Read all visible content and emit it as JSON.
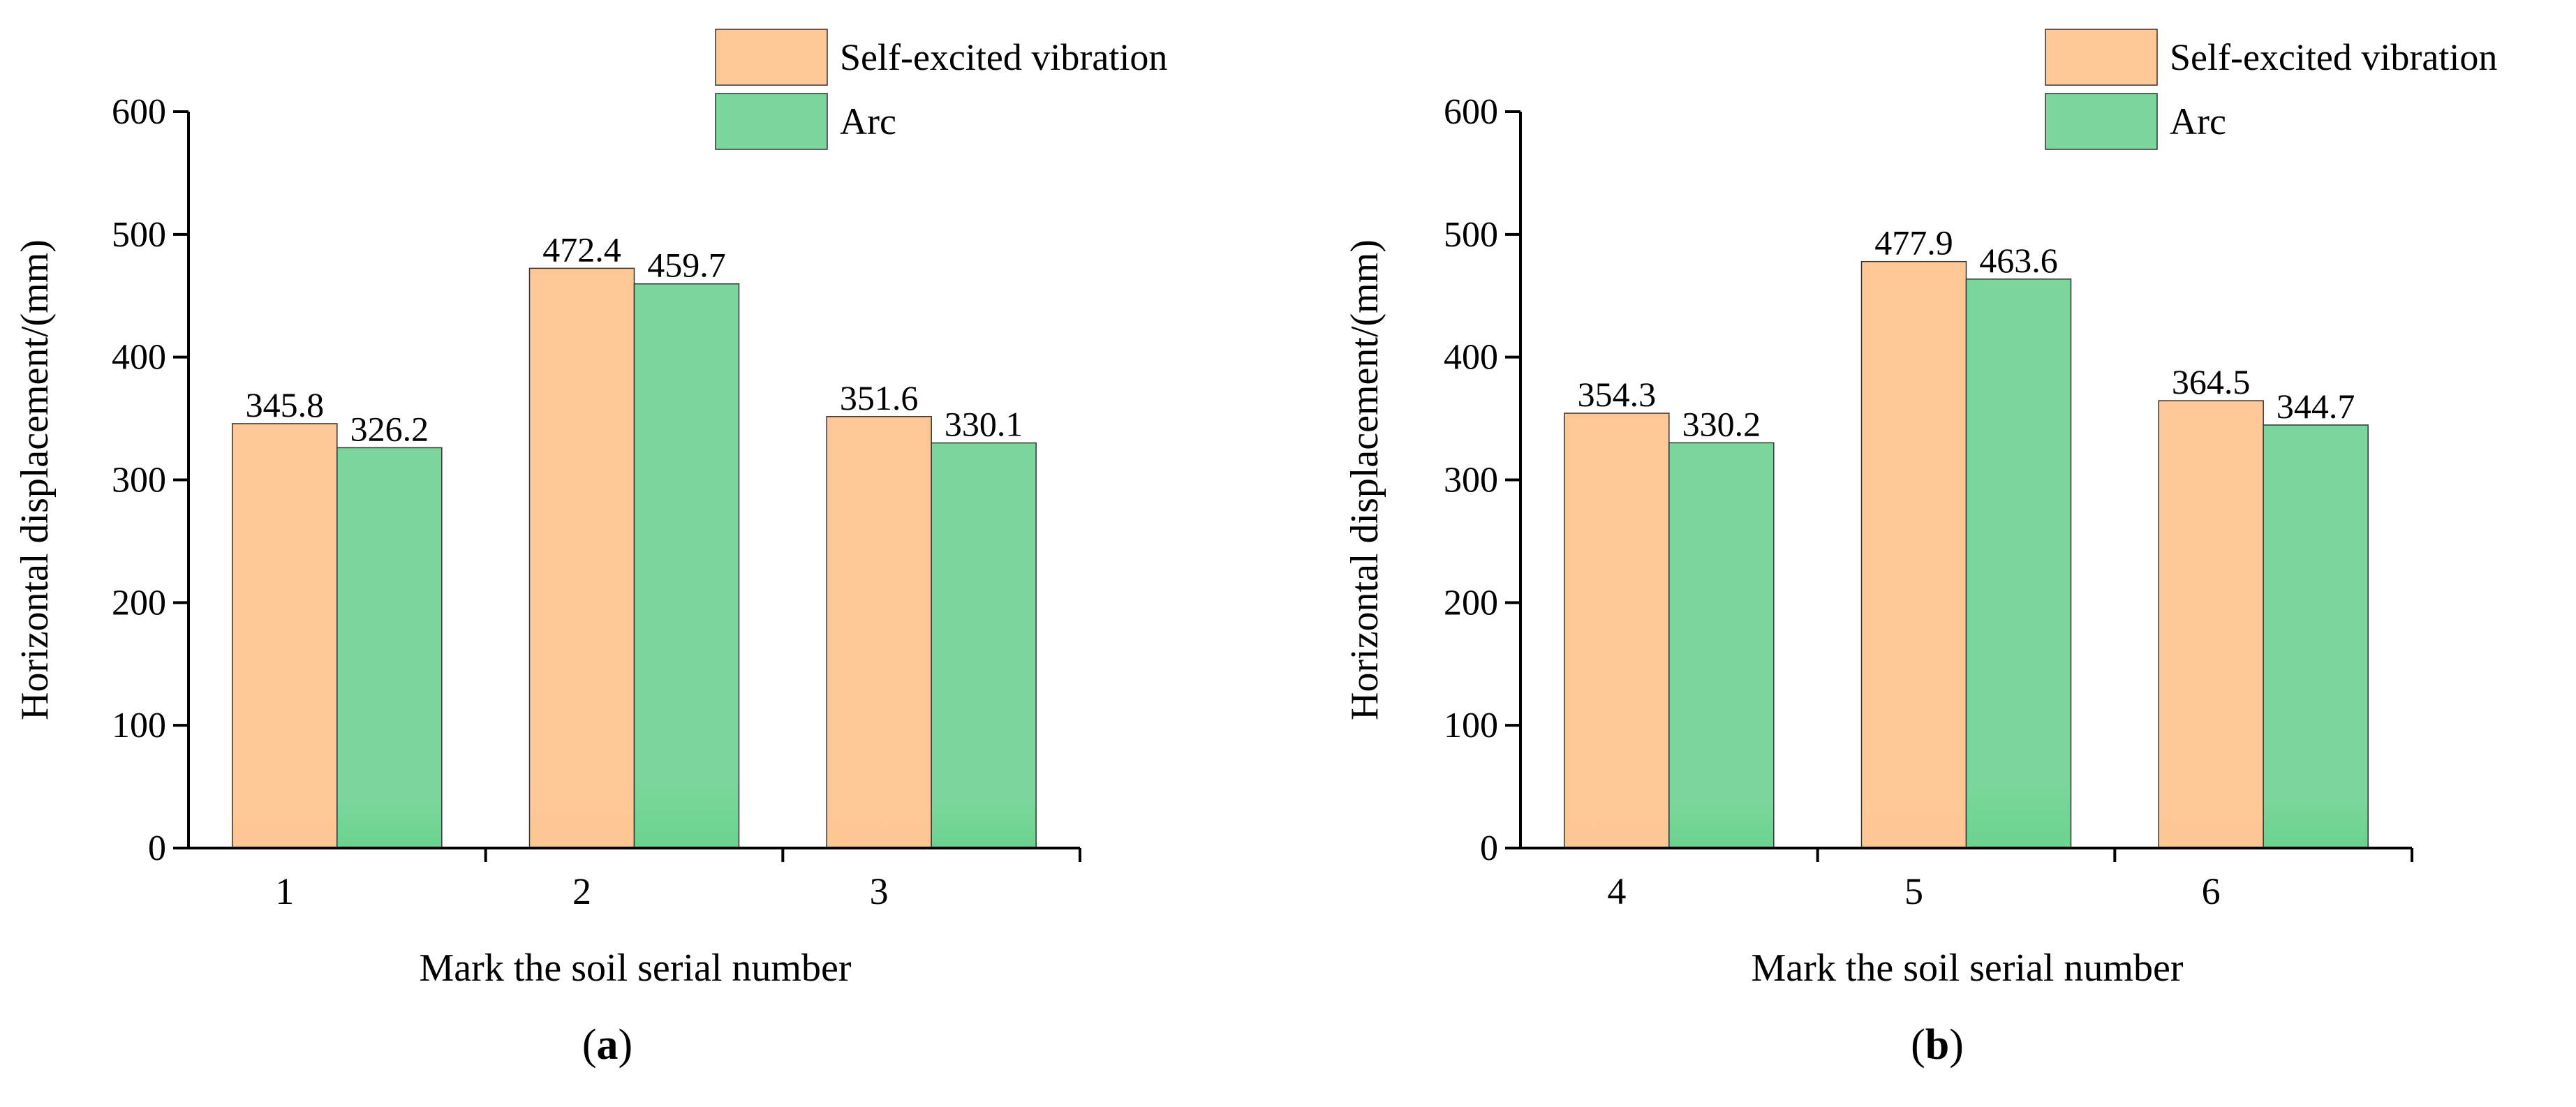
{
  "chart_data": [
    {
      "type": "bar",
      "panel_label": "a",
      "categories": [
        "1",
        "2",
        "3"
      ],
      "series": [
        {
          "name": "Self-excited vibration",
          "values": [
            345.8,
            472.4,
            351.6
          ]
        },
        {
          "name": "Arc",
          "values": [
            326.2,
            459.7,
            330.1
          ]
        }
      ],
      "value_labels": [
        [
          "345.8",
          "472.4",
          "351.6"
        ],
        [
          "326.2",
          "459.7",
          "330.1"
        ]
      ],
      "title": "",
      "xlabel": "Mark the soil serial number",
      "ylabel": "Horizontal displacement/(mm)",
      "ylim": [
        0,
        600
      ],
      "yticks": [
        0,
        100,
        200,
        300,
        400,
        500,
        600
      ],
      "ytick_labels": [
        "0",
        "100",
        "200",
        "300",
        "400",
        "500",
        "600"
      ],
      "grid": false,
      "legend": "top-right"
    },
    {
      "type": "bar",
      "panel_label": "b",
      "categories": [
        "4",
        "5",
        "6"
      ],
      "series": [
        {
          "name": "Self-excited vibration",
          "values": [
            354.3,
            477.9,
            364.5
          ]
        },
        {
          "name": "Arc",
          "values": [
            330.2,
            463.6,
            344.7
          ]
        }
      ],
      "value_labels": [
        [
          "354.3",
          "477.9",
          "364.5"
        ],
        [
          "330.2",
          "463.6",
          "344.7"
        ]
      ],
      "title": "",
      "xlabel": "Mark the soil serial number",
      "ylabel": "Horizontal displacement/(mm)",
      "ylim": [
        0,
        600
      ],
      "yticks": [
        0,
        100,
        200,
        300,
        400,
        500,
        600
      ],
      "ytick_labels": [
        "0",
        "100",
        "200",
        "300",
        "400",
        "500",
        "600"
      ],
      "grid": false,
      "legend": "top-right"
    }
  ],
  "colors": {
    "series": [
      "#fec796",
      "#7bd69b"
    ],
    "series_bottom": [
      "#fdc794",
      "#6ad48d"
    ],
    "axis": "#000000",
    "bar_edge": "#333333"
  }
}
